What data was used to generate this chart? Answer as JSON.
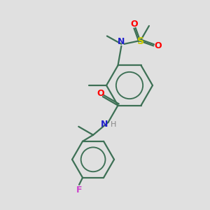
{
  "bg_color": "#e0e0e0",
  "bond_color": "#3d7055",
  "atom_colors": {
    "O": "#ff0000",
    "N": "#2222cc",
    "S": "#cccc00",
    "F": "#cc44cc",
    "H": "#888888"
  },
  "lw": 1.6
}
